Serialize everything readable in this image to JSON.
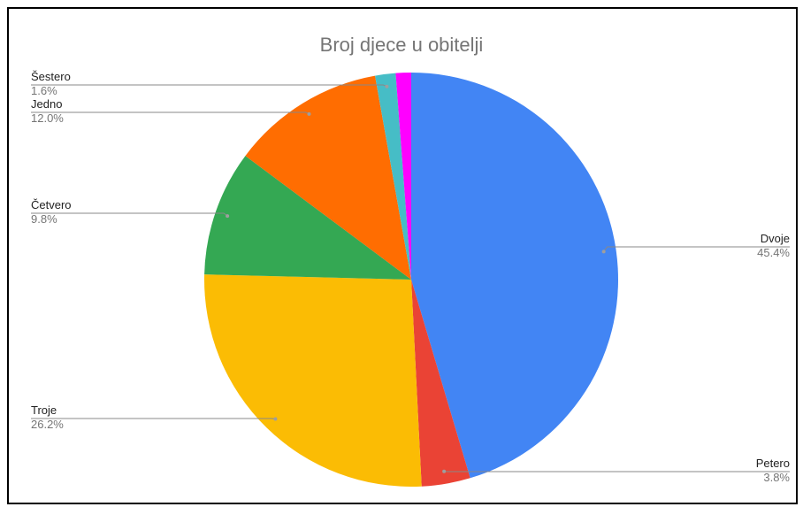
{
  "chart_data": {
    "type": "pie",
    "title": "Broj djece u obitelji",
    "slices": [
      {
        "name": "Dvoje",
        "label": "45.4%",
        "value": 45.4,
        "color": "#4285F4"
      },
      {
        "name": "Petero",
        "label": "3.8%",
        "value": 3.8,
        "color": "#EA4335"
      },
      {
        "name": "Troje",
        "label": "26.2%",
        "value": 26.2,
        "color": "#FBBC04"
      },
      {
        "name": "Četvero",
        "label": "9.8%",
        "value": 9.8,
        "color": "#34A853"
      },
      {
        "name": "Jedno",
        "label": "12.0%",
        "value": 12.0,
        "color": "#FF6D01"
      },
      {
        "name": "Šestero",
        "label": "1.6%",
        "value": 1.6,
        "color": "#46BDC6"
      },
      {
        "name": "",
        "label": "",
        "value": 1.2,
        "color": "#FF00FF"
      }
    ]
  }
}
